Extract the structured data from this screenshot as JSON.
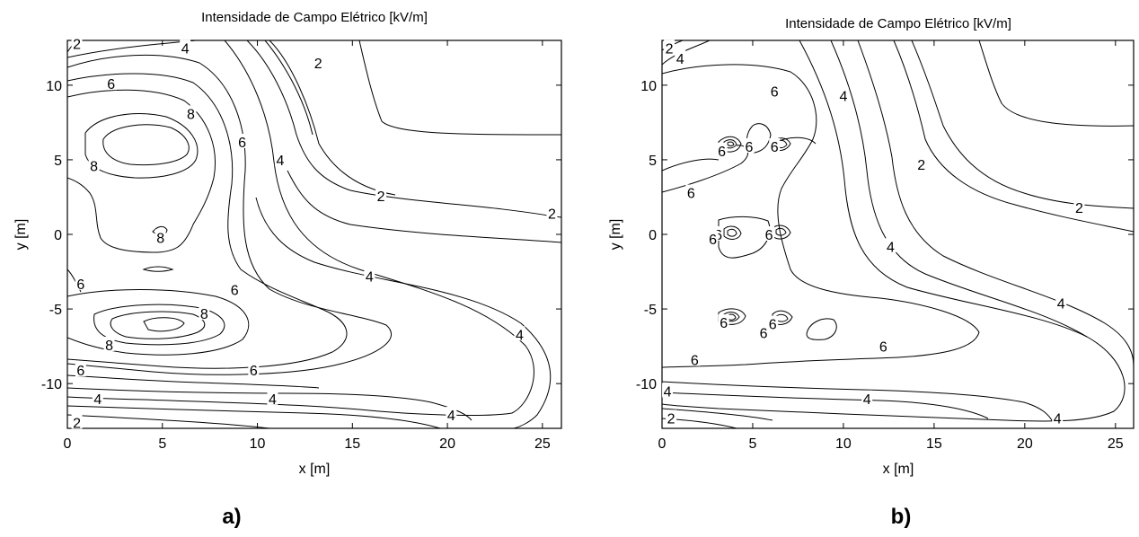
{
  "chart_data": [
    {
      "type": "contour",
      "panel_label": "a)",
      "title": "Intensidade de Campo Elétrico [kV/m]",
      "xlabel": "x [m]",
      "ylabel": "y [m]",
      "xlim": [
        0,
        26
      ],
      "ylim": [
        -13,
        13
      ],
      "xticks": [
        0,
        5,
        10,
        15,
        20,
        25
      ],
      "yticks": [
        -10,
        -5,
        0,
        5,
        10
      ],
      "contour_levels": [
        2,
        4,
        6,
        8
      ],
      "contour_labels": [
        {
          "x": 0.5,
          "y": 12.8,
          "text": "2"
        },
        {
          "x": 6.2,
          "y": 12.5,
          "text": "4"
        },
        {
          "x": 2.3,
          "y": 10.1,
          "text": "6"
        },
        {
          "x": 6.5,
          "y": 8.1,
          "text": "8"
        },
        {
          "x": 9.2,
          "y": 6.2,
          "text": "6"
        },
        {
          "x": 11.2,
          "y": 5.0,
          "text": "4"
        },
        {
          "x": 13.2,
          "y": 11.5,
          "text": "2"
        },
        {
          "x": 1.4,
          "y": 4.6,
          "text": "8"
        },
        {
          "x": 16.5,
          "y": 2.6,
          "text": "2"
        },
        {
          "x": 25.5,
          "y": 1.4,
          "text": "2"
        },
        {
          "x": 4.9,
          "y": -0.2,
          "text": "8"
        },
        {
          "x": 0.7,
          "y": -3.3,
          "text": "6"
        },
        {
          "x": 8.8,
          "y": -3.7,
          "text": "6"
        },
        {
          "x": 15.9,
          "y": -2.8,
          "text": "4"
        },
        {
          "x": 7.2,
          "y": -5.3,
          "text": "8"
        },
        {
          "x": 2.2,
          "y": -7.4,
          "text": "8"
        },
        {
          "x": 23.8,
          "y": -6.7,
          "text": "4"
        },
        {
          "x": 0.7,
          "y": -9.1,
          "text": "6"
        },
        {
          "x": 9.8,
          "y": -9.1,
          "text": "6"
        },
        {
          "x": 1.6,
          "y": -11.0,
          "text": "4"
        },
        {
          "x": 10.8,
          "y": -11.0,
          "text": "4"
        },
        {
          "x": 20.2,
          "y": -12.1,
          "text": "4"
        },
        {
          "x": 0.5,
          "y": -12.6,
          "text": "2"
        }
      ]
    },
    {
      "type": "contour",
      "panel_label": "b)",
      "title": "Intensidade de Campo Elétrico [kV/m]",
      "xlabel": "x [m]",
      "ylabel": "y [m]",
      "xlim": [
        0,
        26
      ],
      "ylim": [
        -13,
        13
      ],
      "xticks": [
        0,
        5,
        10,
        15,
        20,
        25
      ],
      "yticks": [
        -10,
        -5,
        0,
        5,
        10
      ],
      "contour_levels": [
        2,
        4,
        6
      ],
      "contour_labels": [
        {
          "x": 0.4,
          "y": 12.5,
          "text": "2"
        },
        {
          "x": 1.0,
          "y": 11.8,
          "text": "4"
        },
        {
          "x": 6.2,
          "y": 9.6,
          "text": "6"
        },
        {
          "x": 10.0,
          "y": 9.3,
          "text": "4"
        },
        {
          "x": 14.3,
          "y": 4.7,
          "text": "2"
        },
        {
          "x": 1.6,
          "y": 2.8,
          "text": "6"
        },
        {
          "x": 3.3,
          "y": 5.6,
          "text": "6"
        },
        {
          "x": 4.8,
          "y": 5.9,
          "text": "6"
        },
        {
          "x": 6.2,
          "y": 5.9,
          "text": "6"
        },
        {
          "x": 3.1,
          "y": 0.0,
          "text": "6"
        },
        {
          "x": 2.8,
          "y": -0.3,
          "text": "6"
        },
        {
          "x": 5.9,
          "y": 0.0,
          "text": "6"
        },
        {
          "x": 12.6,
          "y": -0.8,
          "text": "4"
        },
        {
          "x": 23.0,
          "y": 1.8,
          "text": "2"
        },
        {
          "x": 3.4,
          "y": -5.9,
          "text": "6"
        },
        {
          "x": 5.6,
          "y": -6.6,
          "text": "6"
        },
        {
          "x": 6.1,
          "y": -6.0,
          "text": "6"
        },
        {
          "x": 12.2,
          "y": -7.5,
          "text": "6"
        },
        {
          "x": 22.0,
          "y": -4.6,
          "text": "4"
        },
        {
          "x": 1.8,
          "y": -8.4,
          "text": "6"
        },
        {
          "x": 0.3,
          "y": -10.5,
          "text": "4"
        },
        {
          "x": 11.3,
          "y": -11.0,
          "text": "4"
        },
        {
          "x": 21.8,
          "y": -12.3,
          "text": "4"
        },
        {
          "x": 0.5,
          "y": -12.3,
          "text": "2"
        }
      ]
    }
  ]
}
